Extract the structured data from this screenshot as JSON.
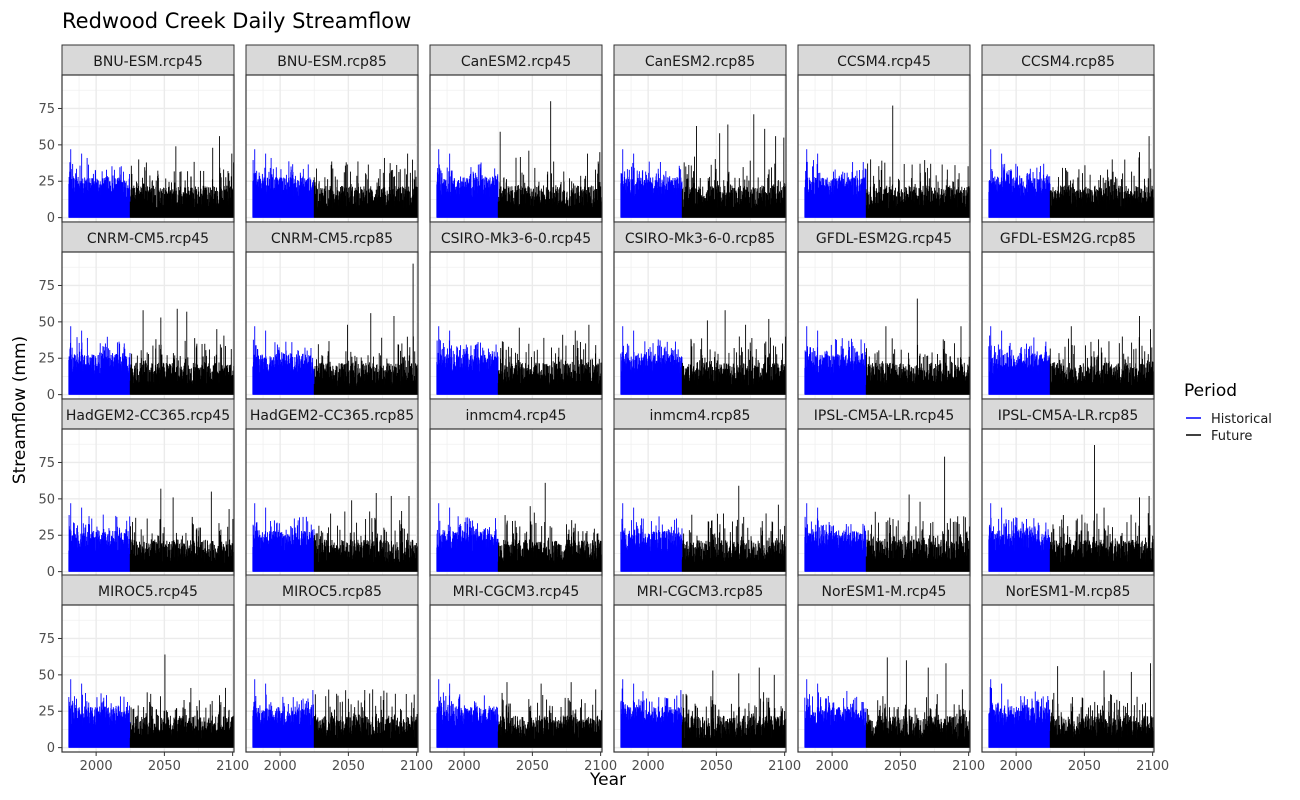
{
  "chart_data": {
    "type": "bar",
    "title": "Redwood Creek Daily Streamflow",
    "xlabel": "Year",
    "ylabel": "Streamflow (mm)",
    "xlim": [
      1975,
      2101
    ],
    "ylim": [
      -3,
      98
    ],
    "x_ticks": [
      2000,
      2050,
      2100
    ],
    "y_ticks": [
      0,
      25,
      50,
      75
    ],
    "grid": true,
    "legend": {
      "title": "Period",
      "position": "right",
      "entries": [
        {
          "name": "Historical",
          "color": "#0000ff"
        },
        {
          "name": "Future",
          "color": "#000000"
        }
      ]
    },
    "historical_period": [
      1980,
      2024
    ],
    "future_period": [
      2025,
      2100
    ],
    "panels": [
      {
        "name": "BNU-ESM.rcp45",
        "peaks": [
          [
            1981,
            47
          ],
          [
            1989,
            44
          ],
          [
            1993,
            41
          ],
          [
            2058,
            49
          ],
          [
            2085,
            48
          ],
          [
            2090,
            56
          ],
          [
            2099,
            44
          ]
        ]
      },
      {
        "name": "BNU-ESM.rcp85",
        "peaks": [
          [
            1981,
            47
          ],
          [
            1989,
            44
          ],
          [
            1993,
            41
          ],
          [
            2048,
            38
          ],
          [
            2076,
            41
          ],
          [
            2093,
            44
          ]
        ]
      },
      {
        "name": "CanESM2.rcp45",
        "peaks": [
          [
            1981,
            47
          ],
          [
            1989,
            44
          ],
          [
            2026,
            59
          ],
          [
            2047,
            46
          ],
          [
            2063,
            80
          ],
          [
            2090,
            44
          ],
          [
            2099,
            45
          ]
        ]
      },
      {
        "name": "CanESM2.rcp85",
        "peaks": [
          [
            1981,
            47
          ],
          [
            1989,
            44
          ],
          [
            2035,
            63
          ],
          [
            2052,
            58
          ],
          [
            2058,
            64
          ],
          [
            2077,
            71
          ],
          [
            2085,
            61
          ],
          [
            2093,
            56
          ],
          [
            2099,
            55
          ]
        ]
      },
      {
        "name": "CCSM4.rcp45",
        "peaks": [
          [
            1981,
            47
          ],
          [
            1989,
            44
          ],
          [
            2044,
            77
          ],
          [
            2064,
            37
          ],
          [
            2084,
            33
          ]
        ]
      },
      {
        "name": "CCSM4.rcp85",
        "peaks": [
          [
            1981,
            47
          ],
          [
            1989,
            44
          ],
          [
            2050,
            36
          ],
          [
            2070,
            40
          ],
          [
            2090,
            45
          ],
          [
            2097,
            56
          ]
        ]
      },
      {
        "name": "CNRM-CM5.rcp45",
        "peaks": [
          [
            1981,
            47
          ],
          [
            1989,
            44
          ],
          [
            2034,
            58
          ],
          [
            2047,
            53
          ],
          [
            2059,
            59
          ],
          [
            2066,
            57
          ],
          [
            2088,
            45
          ]
        ]
      },
      {
        "name": "CNRM-CM5.rcp85",
        "peaks": [
          [
            1981,
            47
          ],
          [
            1989,
            44
          ],
          [
            2049,
            48
          ],
          [
            2066,
            56
          ],
          [
            2083,
            54
          ],
          [
            2097,
            90
          ]
        ]
      },
      {
        "name": "CSIRO-Mk3-6-0.rcp45",
        "peaks": [
          [
            1981,
            47
          ],
          [
            1989,
            44
          ],
          [
            2040,
            46
          ],
          [
            2058,
            39
          ],
          [
            2081,
            44
          ],
          [
            2091,
            48
          ]
        ]
      },
      {
        "name": "CSIRO-Mk3-6-0.rcp85",
        "peaks": [
          [
            1981,
            47
          ],
          [
            1989,
            44
          ],
          [
            2043,
            51
          ],
          [
            2056,
            58
          ],
          [
            2071,
            48
          ],
          [
            2088,
            52
          ]
        ]
      },
      {
        "name": "GFDL-ESM2G.rcp45",
        "peaks": [
          [
            1981,
            47
          ],
          [
            1989,
            44
          ],
          [
            2039,
            47
          ],
          [
            2062,
            66
          ],
          [
            2081,
            38
          ],
          [
            2094,
            47
          ]
        ]
      },
      {
        "name": "GFDL-ESM2G.rcp85",
        "peaks": [
          [
            1981,
            47
          ],
          [
            1989,
            44
          ],
          [
            2040,
            47
          ],
          [
            2060,
            38
          ],
          [
            2090,
            54
          ],
          [
            2098,
            45
          ]
        ]
      },
      {
        "name": "HadGEM2-CC365.rcp45",
        "peaks": [
          [
            1981,
            47
          ],
          [
            1989,
            44
          ],
          [
            2047,
            57
          ],
          [
            2056,
            51
          ],
          [
            2084,
            55
          ],
          [
            2097,
            43
          ]
        ]
      },
      {
        "name": "HadGEM2-CC365.rcp85",
        "peaks": [
          [
            1981,
            47
          ],
          [
            1989,
            44
          ],
          [
            2052,
            49
          ],
          [
            2070,
            54
          ],
          [
            2081,
            52
          ],
          [
            2094,
            52
          ]
        ]
      },
      {
        "name": "inmcm4.rcp45",
        "peaks": [
          [
            1981,
            47
          ],
          [
            1989,
            44
          ],
          [
            2048,
            45
          ],
          [
            2059,
            61
          ],
          [
            2081,
            33
          ],
          [
            2097,
            26
          ]
        ]
      },
      {
        "name": "inmcm4.rcp85",
        "peaks": [
          [
            1981,
            47
          ],
          [
            1989,
            44
          ],
          [
            2046,
            35
          ],
          [
            2066,
            59
          ],
          [
            2086,
            40
          ],
          [
            2095,
            46
          ]
        ]
      },
      {
        "name": "IPSL-CM5A-LR.rcp45",
        "peaks": [
          [
            1981,
            47
          ],
          [
            1989,
            44
          ],
          [
            2056,
            53
          ],
          [
            2064,
            48
          ],
          [
            2082,
            79
          ],
          [
            2096,
            38
          ]
        ]
      },
      {
        "name": "IPSL-CM5A-LR.rcp85",
        "peaks": [
          [
            1981,
            47
          ],
          [
            1989,
            44
          ],
          [
            2057,
            87
          ],
          [
            2064,
            44
          ],
          [
            2090,
            51
          ],
          [
            2097,
            52
          ]
        ]
      },
      {
        "name": "MIROC5.rcp45",
        "peaks": [
          [
            1981,
            47
          ],
          [
            1989,
            44
          ],
          [
            2037,
            38
          ],
          [
            2050,
            64
          ],
          [
            2069,
            41
          ],
          [
            2090,
            36
          ]
        ]
      },
      {
        "name": "MIROC5.rcp85",
        "peaks": [
          [
            1981,
            47
          ],
          [
            1989,
            44
          ],
          [
            2041,
            37
          ],
          [
            2059,
            31
          ],
          [
            2084,
            37
          ],
          [
            2096,
            31
          ]
        ]
      },
      {
        "name": "MRI-CGCM3.rcp45",
        "peaks": [
          [
            1981,
            47
          ],
          [
            1989,
            44
          ],
          [
            2031,
            45
          ],
          [
            2056,
            44
          ],
          [
            2078,
            45
          ],
          [
            2096,
            40
          ]
        ]
      },
      {
        "name": "MRI-CGCM3.rcp85",
        "peaks": [
          [
            1981,
            47
          ],
          [
            1989,
            44
          ],
          [
            2047,
            53
          ],
          [
            2066,
            51
          ],
          [
            2081,
            55
          ],
          [
            2092,
            50
          ]
        ]
      },
      {
        "name": "NorESM1-M.rcp45",
        "peaks": [
          [
            1981,
            47
          ],
          [
            1989,
            44
          ],
          [
            2040,
            62
          ],
          [
            2054,
            60
          ],
          [
            2070,
            55
          ],
          [
            2083,
            58
          ],
          [
            2095,
            40
          ]
        ]
      },
      {
        "name": "NorESM1-M.rcp85",
        "peaks": [
          [
            1981,
            47
          ],
          [
            1989,
            44
          ],
          [
            2030,
            56
          ],
          [
            2064,
            53
          ],
          [
            2084,
            52
          ],
          [
            2098,
            58
          ]
        ]
      }
    ]
  }
}
